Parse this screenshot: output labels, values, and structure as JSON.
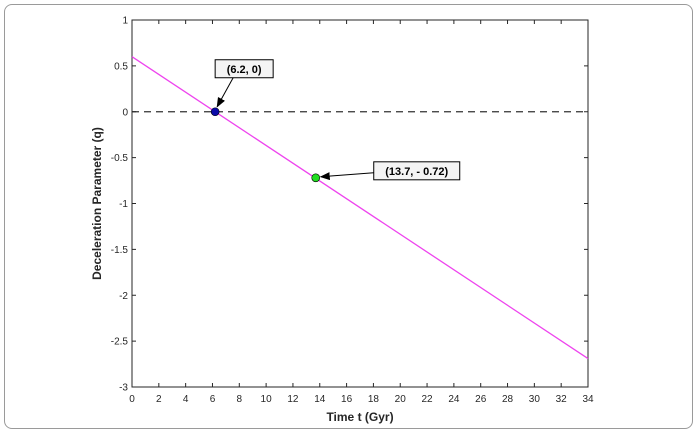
{
  "chart_data": {
    "type": "line",
    "xlabel": "Time t (Gyr)",
    "ylabel": "Deceleration Parameter (q)",
    "xlim": [
      0,
      34
    ],
    "ylim": [
      -3,
      1
    ],
    "x_ticks": [
      0,
      2,
      4,
      6,
      8,
      10,
      12,
      14,
      16,
      18,
      20,
      22,
      24,
      26,
      28,
      30,
      32,
      34
    ],
    "y_ticks": [
      1,
      0.5,
      0,
      -0.5,
      -1,
      -1.5,
      -2,
      -2.5,
      -3
    ],
    "y_tick_labels": [
      "1",
      "0.5",
      "0",
      "-0.5",
      "-1",
      "-1.5",
      "-2",
      "-2.5",
      "-3"
    ],
    "grid": false,
    "series": [
      {
        "x": [
          0,
          34
        ],
        "y": [
          0.6,
          -2.69
        ],
        "color": "#ee44ee",
        "style": "solid"
      }
    ],
    "reference_lines": [
      {
        "y": 0,
        "color": "#333333",
        "style": "dashed"
      }
    ],
    "points": [
      {
        "x": 6.2,
        "y": 0,
        "color": "#0a0aa8"
      },
      {
        "x": 13.7,
        "y": -0.72,
        "color": "#22dd22"
      }
    ],
    "annotations": [
      {
        "text": "(6.2, 0)",
        "x": 6.2,
        "y": 0
      },
      {
        "text": "(13.7, - 0.72)",
        "x": 13.7,
        "y": -0.72
      }
    ]
  }
}
